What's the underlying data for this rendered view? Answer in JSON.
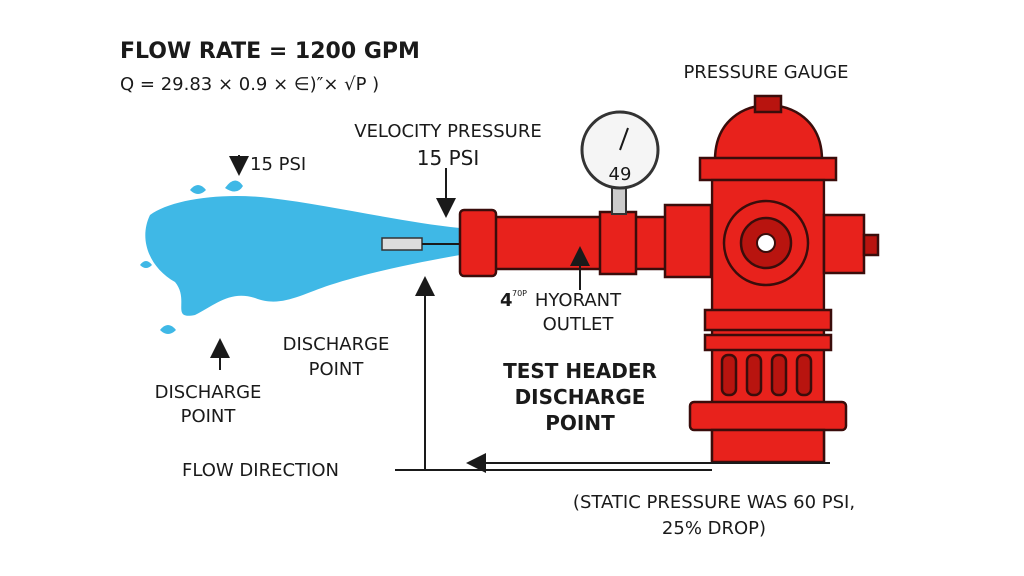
{
  "header": {
    "title": "FLOW RATE = 1200 GPM",
    "formula": "Q = 29.83 × 0.9 × ∈)″× √P )"
  },
  "gauge": {
    "label": "PRESSURE GAUGE",
    "reading": "49"
  },
  "velocity_pressure": {
    "label": "VELOCITY PRESSURE",
    "value": "15 PSI"
  },
  "stream_pressure": "15 PSI",
  "outlet": {
    "size": "4",
    "size_suffix": "70P",
    "lines": [
      "HYORANT",
      "OUTLET"
    ]
  },
  "discharge_point_middle": [
    "DISCHARGE",
    "POINT"
  ],
  "discharge_point_left": [
    "DISCHARGE",
    "POINT"
  ],
  "test_header": [
    "TEST HEADER",
    "DISCHARGE",
    "POINT"
  ],
  "flow_direction": "FLOW DIRECTION",
  "note": [
    "(STATIC PRESSURE WAS 60 PSI,",
    "25% DROP)"
  ]
}
